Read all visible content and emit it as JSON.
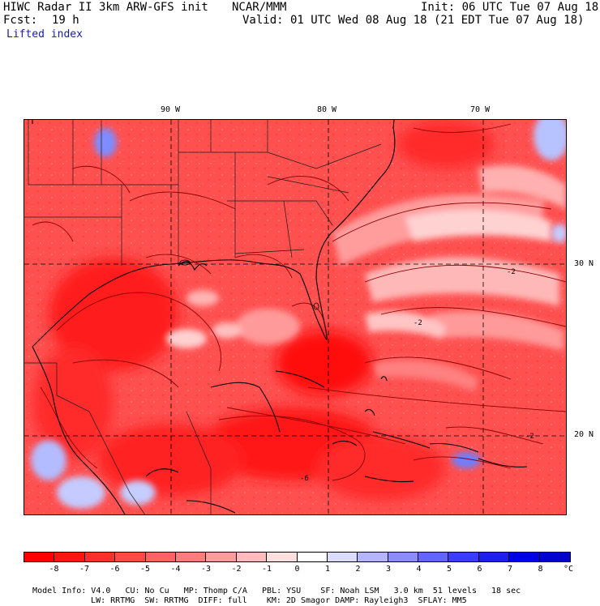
{
  "header": {
    "title": "HIWC Radar II 3km ARW-GFS init",
    "org": "NCAR/MMM",
    "init": "Init: 06 UTC Tue 07 Aug 18",
    "fcst_label": "Fcst:",
    "fcst_value": "19 h",
    "valid": "Valid: 01 UTC Wed 08 Aug 18 (21 EDT Tue 07 Aug 18)",
    "field": "Lifted index"
  },
  "map": {
    "lon_labels": [
      "90 W",
      "80 W",
      "70 W"
    ],
    "lat_labels": [
      "30 N",
      "20 N"
    ],
    "contour_labels": [
      "-2",
      "-2",
      "-2",
      "-6"
    ],
    "colors": {
      "deep_red": "#ff1a1a",
      "mid_red": "#ff5050",
      "light_red": "#ff8a8a",
      "pale": "#ffc8c8",
      "blue": "#6f8aff",
      "coast": "#000000",
      "contour": "#8b0000"
    }
  },
  "colorbar": {
    "ticks": [
      "-8",
      "-7",
      "-6",
      "-5",
      "-4",
      "-3",
      "-2",
      "-1",
      "0",
      "1",
      "2",
      "3",
      "4",
      "5",
      "6",
      "7",
      "8"
    ],
    "unit": "°C",
    "colors": [
      "#ff0000",
      "#ff1414",
      "#ff2e2e",
      "#ff4848",
      "#ff6262",
      "#ff7c7c",
      "#ff9c9c",
      "#ffbcbc",
      "#ffdede",
      "#ffffff",
      "#dcdcff",
      "#b4b4ff",
      "#8c8cff",
      "#6464ff",
      "#3c3cff",
      "#1e1ef0",
      "#0000e6",
      "#0000d2"
    ]
  },
  "model_info": {
    "row1": [
      "Model Info: V4.0",
      "CU: No Cu",
      "MP: Thomp C/A",
      "PBL: YSU",
      "SF: Noah LSM",
      "3.0 km",
      "51 levels",
      "18 sec"
    ],
    "row2": [
      "LW: RRTMG",
      "SW: RRTMG",
      "DIFF: full",
      "KM: 2D Smagor",
      "DAMP: Rayleigh3",
      "SFLAY: MM5"
    ]
  }
}
